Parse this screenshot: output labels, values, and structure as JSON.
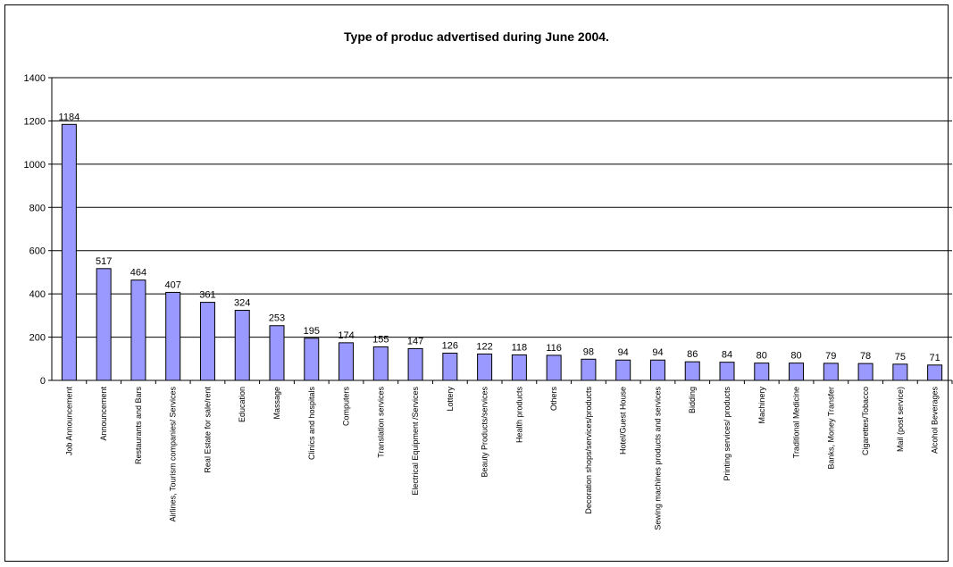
{
  "chart_data": {
    "type": "bar",
    "title": "Type of produc advertised during June 2004.",
    "xlabel": "",
    "ylabel": "",
    "ylim": [
      0,
      1400
    ],
    "yticks": [
      0,
      200,
      400,
      600,
      800,
      1000,
      1200,
      1400
    ],
    "grid": true,
    "bar_color": "#9999ff",
    "categories": [
      "Job Announcement",
      "Announcement",
      "Restaurants and Bars",
      "Airlines, Tourism companies/ Services",
      "Real Estate for sale/rent",
      "Education",
      "Massage",
      "Clinics and hospitals",
      "Computers",
      "Translation services",
      "Electrical Equipment /Services",
      "Lottery",
      "Beauty Products/services",
      "Health products",
      "Others",
      "Decoration shops/services/products",
      "Hotel/Guest House",
      "Sewing machines products and services",
      "Bidding",
      "Printing services/ products",
      "Machinery",
      "Traditional Medicine",
      "Banks, Money Transfer",
      "Cigarettes/Tobacco",
      "Mail (post service)",
      "Alcohol Beverages"
    ],
    "values": [
      1184,
      517,
      464,
      407,
      361,
      324,
      253,
      195,
      174,
      155,
      147,
      126,
      122,
      118,
      116,
      98,
      94,
      94,
      86,
      84,
      80,
      80,
      79,
      78,
      75,
      71
    ]
  }
}
